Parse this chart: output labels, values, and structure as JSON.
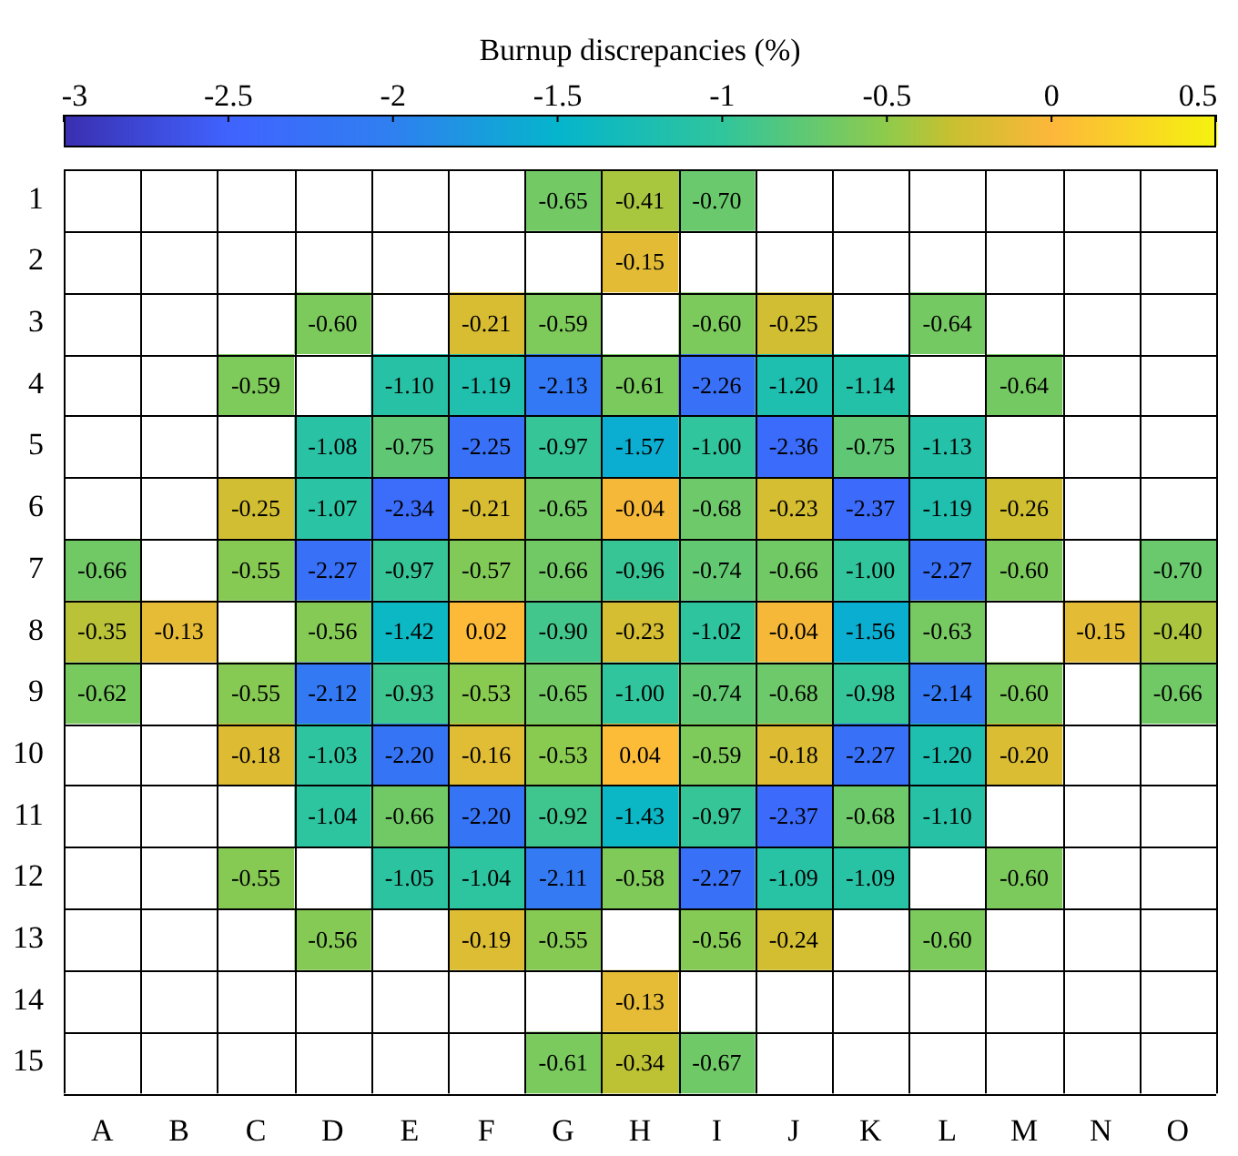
{
  "chart_data": {
    "type": "heatmap",
    "clabel": "Burnup discrepancies (%)",
    "categories": [
      "A",
      "B",
      "C",
      "D",
      "E",
      "F",
      "G",
      "H",
      "I",
      "J",
      "K",
      "L",
      "M",
      "N",
      "O"
    ],
    "y_categories": [
      "1",
      "2",
      "3",
      "4",
      "5",
      "6",
      "7",
      "8",
      "9",
      "10",
      "11",
      "12",
      "13",
      "14",
      "15"
    ],
    "clim": [
      -3,
      0.5
    ],
    "cticks": [
      -3,
      {
        "value": -2.5,
        "label": "-2.5"
      },
      -2,
      {
        "value": -1.5,
        "label": "-1.5"
      },
      -1,
      {
        "value": -0.5,
        "label": "-0.5"
      },
      0,
      {
        "value": 0.5,
        "label": "0.5"
      }
    ],
    "grid": true,
    "cell_labels": [
      [
        null,
        null,
        null,
        null,
        null,
        null,
        "-0.65",
        "-0.41",
        "-0.70",
        null,
        null,
        null,
        null,
        null,
        null
      ],
      [
        null,
        null,
        null,
        null,
        null,
        null,
        null,
        "-0.15",
        null,
        null,
        null,
        null,
        null,
        null,
        null
      ],
      [
        null,
        null,
        null,
        "-0.60",
        null,
        "-0.21",
        "-0.59",
        null,
        "-0.60",
        "-0.25",
        null,
        "-0.64",
        null,
        null,
        null
      ],
      [
        null,
        null,
        "-0.59",
        null,
        "-1.10",
        "-1.19",
        "-2.13",
        "-0.61",
        "-2.26",
        "-1.20",
        "-1.14",
        null,
        "-0.64",
        null,
        null
      ],
      [
        null,
        null,
        null,
        "-1.08",
        "-0.75",
        "-2.25",
        "-0.97",
        "-1.57",
        "-1.00",
        "-2.36",
        "-0.75",
        "-1.13",
        null,
        null,
        null
      ],
      [
        null,
        null,
        "-0.25",
        "-1.07",
        "-2.34",
        "-0.21",
        "-0.65",
        "-0.04",
        "-0.68",
        "-0.23",
        "-2.37",
        "-1.19",
        "-0.26",
        null,
        null
      ],
      [
        "-0.66",
        null,
        "-0.55",
        "-2.27",
        "-0.97",
        "-0.57",
        "-0.66",
        "-0.96",
        "-0.74",
        "-0.66",
        "-1.00",
        "-2.27",
        "-0.60",
        null,
        "-0.70"
      ],
      [
        "-0.35",
        "-0.13",
        null,
        "-0.56",
        "-1.42",
        "0.02",
        "-0.90",
        "-0.23",
        "-1.02",
        "-0.04",
        "-1.56",
        "-0.63",
        null,
        "-0.15",
        "-0.40"
      ],
      [
        "-0.62",
        null,
        "-0.55",
        "-2.12",
        "-0.93",
        "-0.53",
        "-0.65",
        "-1.00",
        "-0.74",
        "-0.68",
        "-0.98",
        "-2.14",
        "-0.60",
        null,
        "-0.66"
      ],
      [
        null,
        null,
        "-0.18",
        "-1.03",
        "-2.20",
        "-0.16",
        "-0.53",
        "0.04",
        "-0.59",
        "-0.18",
        "-2.27",
        "-1.20",
        "-0.20",
        null,
        null
      ],
      [
        null,
        null,
        null,
        "-1.04",
        "-0.66",
        "-2.20",
        "-0.92",
        "-1.43",
        "-0.97",
        "-2.37",
        "-0.68",
        "-1.10",
        null,
        null,
        null
      ],
      [
        null,
        null,
        "-0.55",
        null,
        "-1.05",
        "-1.04",
        "-2.11",
        "-0.58",
        "-2.27",
        "-1.09",
        "-1.09",
        null,
        "-0.60",
        null,
        null
      ],
      [
        null,
        null,
        null,
        "-0.56",
        null,
        "-0.19",
        "-0.55",
        null,
        "-0.56",
        "-0.24",
        null,
        "-0.60",
        null,
        null,
        null
      ],
      [
        null,
        null,
        null,
        null,
        null,
        null,
        null,
        "-0.13",
        null,
        null,
        null,
        null,
        null,
        null,
        null
      ],
      [
        null,
        null,
        null,
        null,
        null,
        null,
        "-0.61",
        "-0.34",
        "-0.67",
        null,
        null,
        null,
        null,
        null,
        null
      ]
    ],
    "cells": [
      [
        null,
        null,
        null,
        null,
        null,
        null,
        -0.65,
        -0.41,
        -0.7,
        null,
        null,
        null,
        null,
        null,
        null
      ],
      [
        null,
        null,
        null,
        null,
        null,
        null,
        null,
        -0.15,
        null,
        null,
        null,
        null,
        null,
        null,
        null
      ],
      [
        null,
        null,
        null,
        -0.6,
        null,
        -0.21,
        -0.59,
        null,
        -0.6,
        -0.25,
        null,
        -0.64,
        null,
        null,
        null
      ],
      [
        null,
        null,
        -0.59,
        null,
        -1.1,
        -1.19,
        -2.13,
        -0.61,
        -2.26,
        -1.2,
        -1.14,
        null,
        -0.64,
        null,
        null
      ],
      [
        null,
        null,
        null,
        -1.08,
        -0.75,
        -2.25,
        -0.97,
        -1.57,
        -1.0,
        -2.36,
        -0.75,
        -1.13,
        null,
        null,
        null
      ],
      [
        null,
        null,
        -0.25,
        -1.07,
        -2.34,
        -0.21,
        -0.65,
        -0.04,
        -0.68,
        -0.23,
        -2.37,
        -1.19,
        -0.26,
        null,
        null
      ],
      [
        -0.66,
        null,
        -0.55,
        -2.27,
        -0.97,
        -0.57,
        -0.66,
        -0.96,
        -0.74,
        -0.66,
        -1.0,
        -2.27,
        -0.6,
        null,
        -0.7
      ],
      [
        -0.35,
        -0.13,
        null,
        -0.56,
        -1.42,
        0.02,
        -0.9,
        -0.23,
        -1.02,
        -0.04,
        -1.56,
        -0.63,
        null,
        -0.15,
        -0.4
      ],
      [
        -0.62,
        null,
        -0.55,
        -2.12,
        -0.93,
        -0.53,
        -0.65,
        -1.0,
        -0.74,
        -0.68,
        -0.98,
        -2.14,
        -0.6,
        null,
        -0.66
      ],
      [
        null,
        null,
        -0.18,
        -1.03,
        -2.2,
        -0.16,
        -0.53,
        0.04,
        -0.59,
        -0.18,
        -2.27,
        -1.2,
        -0.2,
        null,
        null
      ],
      [
        null,
        null,
        null,
        -1.04,
        -0.66,
        -2.2,
        -0.92,
        -1.43,
        -0.97,
        -2.37,
        -0.68,
        -1.1,
        null,
        null,
        null
      ],
      [
        null,
        null,
        -0.55,
        null,
        -1.05,
        -1.04,
        -2.11,
        -0.58,
        -2.27,
        -1.09,
        -1.09,
        null,
        -0.6,
        null,
        null
      ],
      [
        null,
        null,
        null,
        -0.56,
        null,
        -0.19,
        -0.55,
        null,
        -0.56,
        -0.24,
        null,
        -0.6,
        null,
        null,
        null
      ],
      [
        null,
        null,
        null,
        null,
        null,
        null,
        null,
        -0.13,
        null,
        null,
        null,
        null,
        null,
        null,
        null
      ],
      [
        null,
        null,
        null,
        null,
        null,
        null,
        -0.61,
        -0.34,
        -0.67,
        null,
        null,
        null,
        null,
        null,
        null
      ]
    ]
  }
}
